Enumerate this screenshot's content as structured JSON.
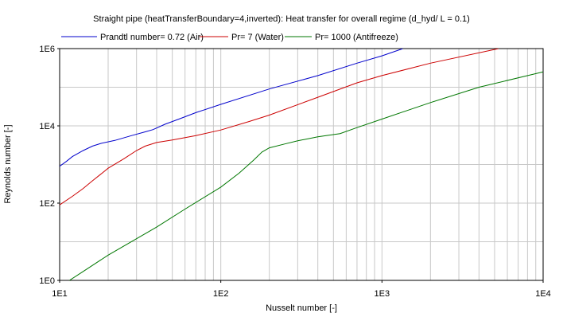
{
  "chart_data": {
    "type": "line",
    "title": "Straight pipe (heatTransferBoundary=4,inverted): Heat transfer for overall regime (d_hyd/ L = 0.1)",
    "xlabel": "Nusselt number [-]",
    "ylabel": "Reynolds number [-]",
    "xscale": "log",
    "yscale": "log",
    "xlim": [
      10,
      10000
    ],
    "ylim": [
      1,
      1000000
    ],
    "grid": true,
    "legend_position": "top",
    "x_ticks": [
      {
        "value": 10,
        "label": "1E1"
      },
      {
        "value": 100,
        "label": "1E2"
      },
      {
        "value": 1000,
        "label": "1E3"
      },
      {
        "value": 10000,
        "label": "1E4"
      }
    ],
    "y_ticks": [
      {
        "value": 1,
        "label": "1E0"
      },
      {
        "value": 100,
        "label": "1E2"
      },
      {
        "value": 10000,
        "label": "1E4"
      },
      {
        "value": 1000000,
        "label": "1E6"
      }
    ],
    "series": [
      {
        "name": "Prandtl number= 0.72 (Air)",
        "color": "#0000cc",
        "points": [
          [
            10,
            900
          ],
          [
            11,
            1200
          ],
          [
            12,
            1600
          ],
          [
            14,
            2300
          ],
          [
            16,
            3000
          ],
          [
            18,
            3500
          ],
          [
            22,
            4200
          ],
          [
            28,
            5600
          ],
          [
            34,
            7000
          ],
          [
            38,
            8000
          ],
          [
            45,
            11000
          ],
          [
            55,
            15000
          ],
          [
            70,
            22000
          ],
          [
            100,
            36000
          ],
          [
            200,
            90000
          ],
          [
            400,
            200000
          ],
          [
            700,
            420000
          ],
          [
            1000,
            650000
          ],
          [
            1350,
            1000000
          ]
        ]
      },
      {
        "name": "Pr= 7 (Water)",
        "color": "#cc0000",
        "points": [
          [
            10,
            90
          ],
          [
            12,
            150
          ],
          [
            14,
            240
          ],
          [
            16,
            380
          ],
          [
            18,
            560
          ],
          [
            20,
            800
          ],
          [
            25,
            1400
          ],
          [
            30,
            2300
          ],
          [
            34,
            3000
          ],
          [
            40,
            3700
          ],
          [
            50,
            4300
          ],
          [
            70,
            5600
          ],
          [
            100,
            7800
          ],
          [
            150,
            13000
          ],
          [
            200,
            19000
          ],
          [
            400,
            55000
          ],
          [
            700,
            130000
          ],
          [
            1000,
            200000
          ],
          [
            2000,
            420000
          ],
          [
            5300,
            1000000
          ]
        ]
      },
      {
        "name": "Pr= 1000 (Antifreeze)",
        "color": "#007700",
        "points": [
          [
            11.5,
            1
          ],
          [
            14,
            1.7
          ],
          [
            20,
            4.5
          ],
          [
            30,
            12
          ],
          [
            40,
            24
          ],
          [
            60,
            70
          ],
          [
            100,
            260
          ],
          [
            130,
            600
          ],
          [
            160,
            1300
          ],
          [
            180,
            2100
          ],
          [
            200,
            2700
          ],
          [
            250,
            3400
          ],
          [
            300,
            4100
          ],
          [
            400,
            5200
          ],
          [
            550,
            6300
          ],
          [
            700,
            9000
          ],
          [
            1000,
            15000
          ],
          [
            2000,
            40000
          ],
          [
            4000,
            100000
          ],
          [
            10000,
            250000
          ]
        ]
      }
    ]
  }
}
